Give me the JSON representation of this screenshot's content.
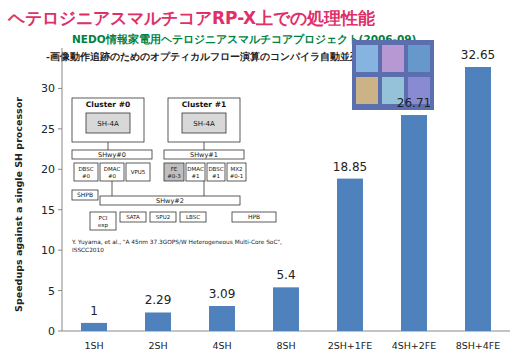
{
  "chart_data": {
    "type": "bar",
    "title": "ヘテロジニアスマルチコアRP-X上での処理性能",
    "subtitle": "NEDO情報家電用ヘテロジニアスマルチコアプロジェクト(2006-09)",
    "y_label": "Speedups against a single SH processor",
    "categories": [
      "1SH",
      "2SH",
      "4SH",
      "8SH",
      "2SH+1FE",
      "4SH+2FE",
      "8SH+4FE"
    ],
    "values": [
      1,
      2.29,
      3.09,
      5.4,
      18.85,
      26.71,
      32.65
    ],
    "color": "#4f81bd",
    "ylim": [
      0,
      35
    ],
    "yticks": [
      0,
      5,
      10,
      15,
      20,
      25,
      30
    ],
    "grid": false,
    "data_labels": true,
    "annotations": [
      "-画像動作追跡のためのオプティカルフロー演算のコンパイラ自動並列化(世界初)-",
      "Y. Yuyama, et al., \"A 45nm 37.3GOPS/W Heterogeneous Multi-Core SoC\",",
      "ISSCC2010",
      "Cluster #0",
      "Cluster #1",
      "SH-4A",
      "SH-4A",
      "SHwy#0",
      "SHwy#1",
      "DBSC #0",
      "DMAC #0",
      "VPU5",
      "FE #0-3",
      "DMAC #1",
      "DBSC #1",
      "MX2 #0-1",
      "SHPB",
      "SHwy#2",
      "PCI exp",
      "SATA",
      "SPU2",
      "LBSC",
      "HPB"
    ]
  }
}
